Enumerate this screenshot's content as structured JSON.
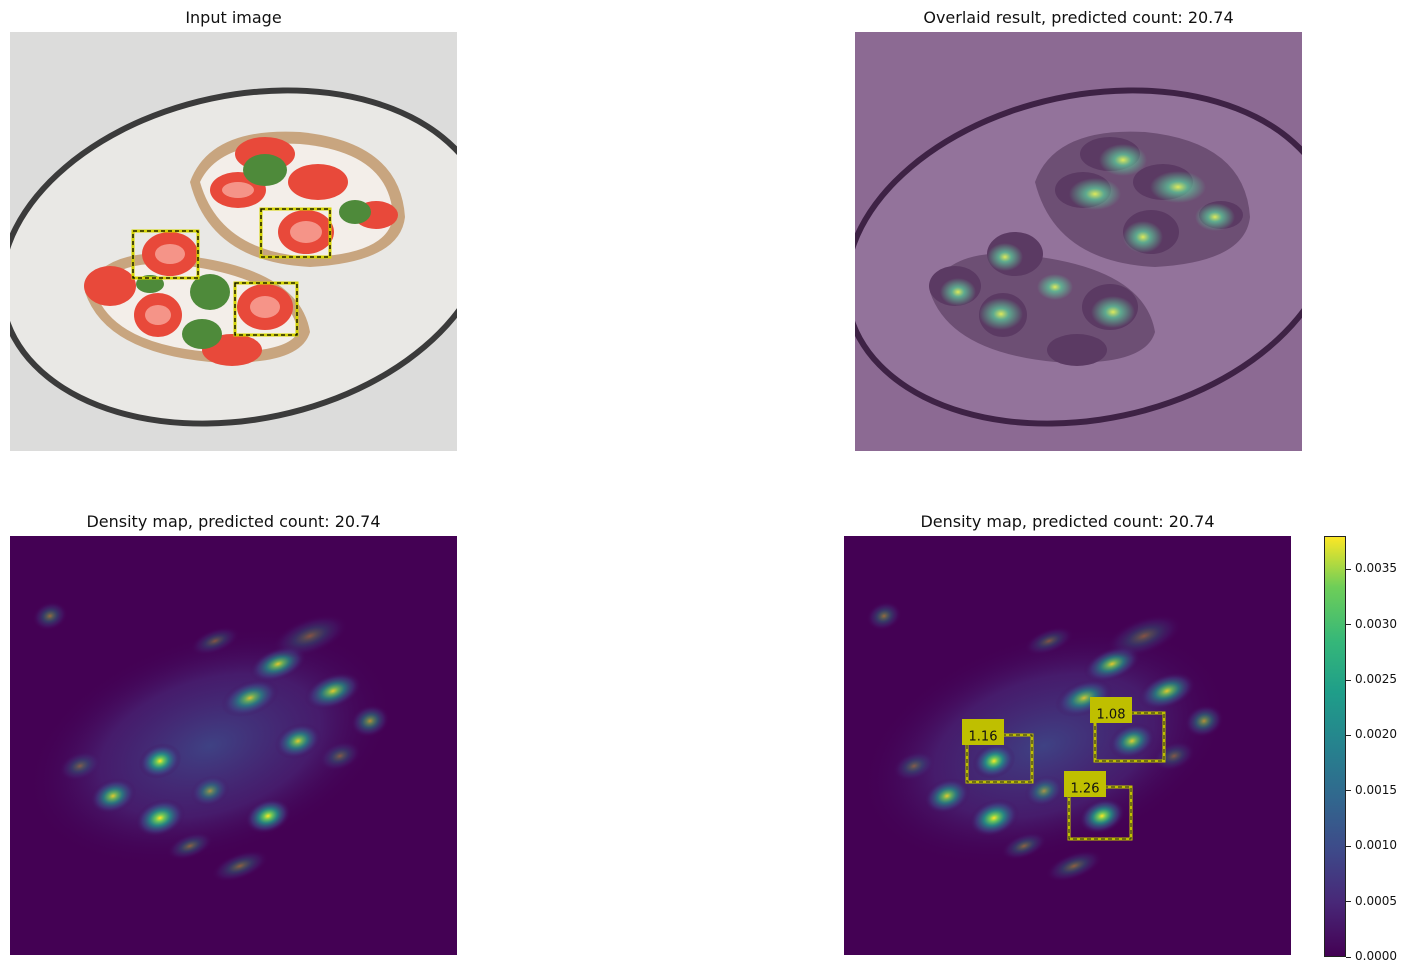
{
  "panels": {
    "input": {
      "title": "Input image"
    },
    "overlay": {
      "title": "Overlaid result, predicted count: 20.74"
    },
    "density": {
      "title": "Density map, predicted count: 20.74"
    },
    "density_boxes": {
      "title": "Density map, predicted count: 20.74"
    }
  },
  "colors": {
    "viridis_low": "#440154",
    "viridis_mid": "#21918c",
    "viridis_high": "#fde725",
    "box_yellow": "#bfbf00",
    "overlay_tint": "#8a6b91"
  },
  "chart_data": {
    "type": "heatmap",
    "predicted_count": 20.74,
    "colorbar": {
      "ticks": [
        "0.0000",
        "0.0005",
        "0.0010",
        "0.0015",
        "0.0020",
        "0.0025",
        "0.0030",
        "0.0035"
      ],
      "range": [
        0,
        0.0038
      ]
    },
    "exemplar_boxes": [
      {
        "label": "1.16",
        "value": 1.16
      },
      {
        "label": "1.08",
        "value": 1.08
      },
      {
        "label": "1.26",
        "value": 1.26
      }
    ]
  }
}
